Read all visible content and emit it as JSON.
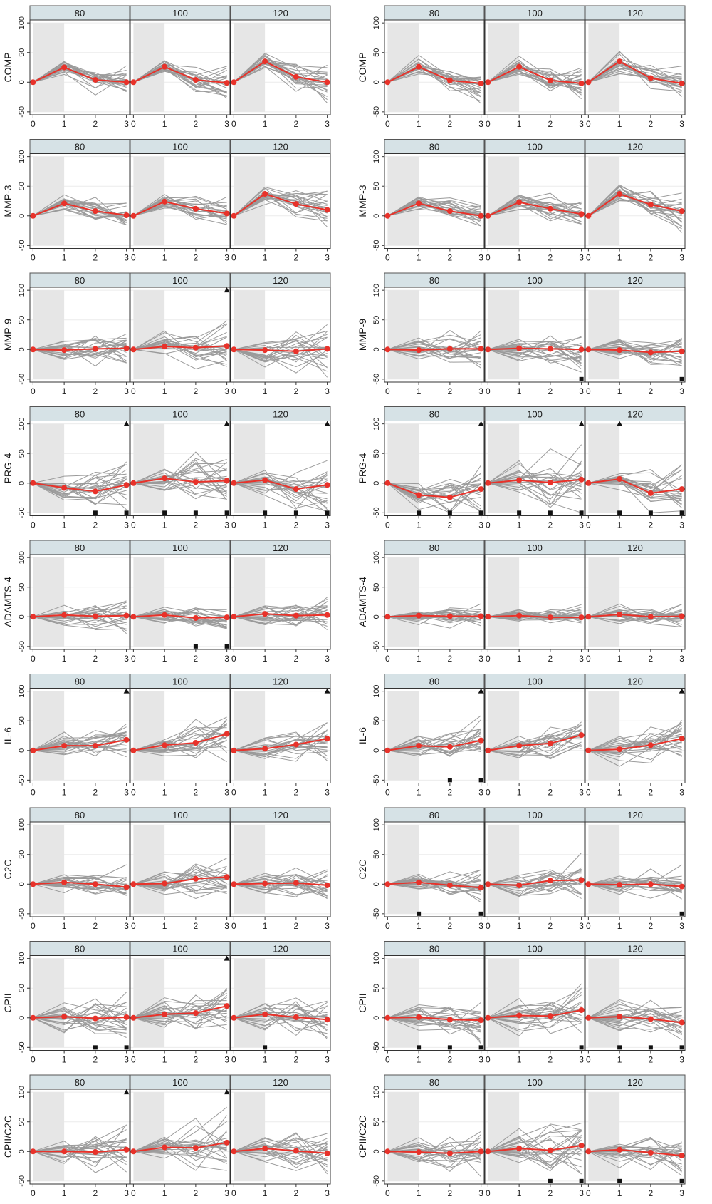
{
  "chart_data": {
    "type": "line",
    "description_axis": {
      "x_ticks": [
        "0",
        "1",
        "2",
        "3"
      ],
      "y_ticks": [
        "-50",
        "0",
        "50",
        "100"
      ],
      "xlim": [
        -0.1,
        3.1
      ],
      "ylim": [
        -55,
        105
      ],
      "shaded_x": [
        0,
        1
      ]
    },
    "panel_labels": [
      "80",
      "100",
      "120"
    ],
    "colors": {
      "strip_bg": "#d6e2e6",
      "shade": "#e6e6e6",
      "grey_line": "#9a9a9a",
      "mean_line": "#e8322a",
      "marker": "#111111"
    },
    "rows": [
      {
        "label": "COMP",
        "groups": [
          {
            "panels": [
              {
                "label": "80",
                "mean": [
                  0,
                  25,
                  4,
                  0
                ],
                "spread": 14,
                "tri": [],
                "sq": []
              },
              {
                "label": "100",
                "mean": [
                  0,
                  26,
                  4,
                  -1
                ],
                "spread": 14,
                "tri": [],
                "sq": []
              },
              {
                "label": "120",
                "mean": [
                  0,
                  35,
                  9,
                  0
                ],
                "spread": 16,
                "tri": [],
                "sq": []
              }
            ]
          },
          {
            "panels": [
              {
                "label": "80",
                "mean": [
                  0,
                  26,
                  3,
                  -2
                ],
                "spread": 15,
                "tri": [],
                "sq": []
              },
              {
                "label": "100",
                "mean": [
                  0,
                  26,
                  3,
                  -2
                ],
                "spread": 14,
                "tri": [],
                "sq": []
              },
              {
                "label": "120",
                "mean": [
                  0,
                  35,
                  7,
                  -2
                ],
                "spread": 16,
                "tri": [],
                "sq": []
              }
            ]
          }
        ]
      },
      {
        "label": "MMP-3",
        "groups": [
          {
            "panels": [
              {
                "label": "80",
                "mean": [
                  0,
                  21,
                  8,
                  1
                ],
                "spread": 13,
                "tri": [],
                "sq": []
              },
              {
                "label": "100",
                "mean": [
                  0,
                  24,
                  12,
                  4
                ],
                "spread": 14,
                "tri": [],
                "sq": []
              },
              {
                "label": "120",
                "mean": [
                  0,
                  37,
                  20,
                  10
                ],
                "spread": 17,
                "tri": [],
                "sq": []
              }
            ]
          },
          {
            "panels": [
              {
                "label": "80",
                "mean": [
                  0,
                  21,
                  8,
                  0
                ],
                "spread": 13,
                "tri": [],
                "sq": []
              },
              {
                "label": "100",
                "mean": [
                  0,
                  23,
                  12,
                  3
                ],
                "spread": 15,
                "tri": [],
                "sq": []
              },
              {
                "label": "120",
                "mean": [
                  0,
                  37,
                  19,
                  8
                ],
                "spread": 18,
                "tri": [],
                "sq": []
              }
            ]
          }
        ]
      },
      {
        "label": "MMP-9",
        "groups": [
          {
            "panels": [
              {
                "label": "80",
                "mean": [
                  0,
                  -1,
                  1,
                  2
                ],
                "spread": 20,
                "tri": [],
                "sq": []
              },
              {
                "label": "100",
                "mean": [
                  0,
                  5,
                  3,
                  6
                ],
                "spread": 22,
                "tri": [
                  3
                ],
                "sq": []
              },
              {
                "label": "120",
                "mean": [
                  0,
                  -1,
                  -3,
                  1
                ],
                "spread": 22,
                "tri": [],
                "sq": []
              }
            ]
          },
          {
            "panels": [
              {
                "label": "80",
                "mean": [
                  0,
                  -1,
                  1,
                  1
                ],
                "spread": 20,
                "tri": [],
                "sq": []
              },
              {
                "label": "100",
                "mean": [
                  0,
                  2,
                  1,
                  0
                ],
                "spread": 22,
                "tri": [],
                "sq": [
                  3
                ]
              },
              {
                "label": "120",
                "mean": [
                  0,
                  -1,
                  -5,
                  -3
                ],
                "spread": 21,
                "tri": [],
                "sq": [
                  3
                ]
              }
            ]
          }
        ]
      },
      {
        "label": "PRG-4",
        "groups": [
          {
            "panels": [
              {
                "label": "80",
                "mean": [
                  0,
                  -8,
                  -14,
                  -3
                ],
                "spread": 24,
                "tri": [
                  3
                ],
                "sq": [
                  2,
                  3
                ]
              },
              {
                "label": "100",
                "mean": [
                  0,
                  8,
                  2,
                  4
                ],
                "spread": 28,
                "tri": [
                  3
                ],
                "sq": [
                  1,
                  2,
                  3
                ]
              },
              {
                "label": "120",
                "mean": [
                  0,
                  5,
                  -10,
                  -3
                ],
                "spread": 28,
                "tri": [
                  3
                ],
                "sq": [
                  1,
                  2,
                  3
                ]
              }
            ]
          },
          {
            "panels": [
              {
                "label": "80",
                "mean": [
                  0,
                  -20,
                  -24,
                  -10
                ],
                "spread": 24,
                "tri": [
                  3
                ],
                "sq": [
                  1,
                  2,
                  3
                ]
              },
              {
                "label": "100",
                "mean": [
                  0,
                  5,
                  1,
                  6
                ],
                "spread": 28,
                "tri": [
                  3
                ],
                "sq": [
                  1,
                  2,
                  3
                ]
              },
              {
                "label": "120",
                "mean": [
                  0,
                  7,
                  -17,
                  -10
                ],
                "spread": 28,
                "tri": [
                  1
                ],
                "sq": [
                  1,
                  2,
                  3
                ]
              }
            ]
          }
        ]
      },
      {
        "label": "ADAMTS-4",
        "groups": [
          {
            "panels": [
              {
                "label": "80",
                "mean": [
                  0,
                  3,
                  1,
                  2
                ],
                "spread": 16,
                "tri": [],
                "sq": []
              },
              {
                "label": "100",
                "mean": [
                  0,
                  3,
                  -2,
                  -1
                ],
                "spread": 12,
                "tri": [],
                "sq": [
                  2,
                  3
                ]
              },
              {
                "label": "120",
                "mean": [
                  0,
                  5,
                  2,
                  3
                ],
                "spread": 18,
                "tri": [],
                "sq": []
              }
            ]
          },
          {
            "panels": [
              {
                "label": "80",
                "mean": [
                  0,
                  2,
                  1,
                  1
                ],
                "spread": 12,
                "tri": [],
                "sq": []
              },
              {
                "label": "100",
                "mean": [
                  0,
                  2,
                  -1,
                  -1
                ],
                "spread": 10,
                "tri": [],
                "sq": []
              },
              {
                "label": "120",
                "mean": [
                  0,
                  4,
                  0,
                  1
                ],
                "spread": 12,
                "tri": [],
                "sq": []
              }
            ]
          }
        ]
      },
      {
        "label": "IL-6",
        "groups": [
          {
            "panels": [
              {
                "label": "80",
                "mean": [
                  0,
                  8,
                  8,
                  18
                ],
                "spread": 20,
                "tri": [
                  3
                ],
                "sq": []
              },
              {
                "label": "100",
                "mean": [
                  0,
                  9,
                  13,
                  28
                ],
                "spread": 20,
                "tri": [],
                "sq": []
              },
              {
                "label": "120",
                "mean": [
                  0,
                  3,
                  10,
                  20
                ],
                "spread": 20,
                "tri": [
                  3
                ],
                "sq": []
              }
            ]
          },
          {
            "panels": [
              {
                "label": "80",
                "mean": [
                  0,
                  8,
                  6,
                  17
                ],
                "spread": 22,
                "tri": [
                  3
                ],
                "sq": [
                  2,
                  3
                ]
              },
              {
                "label": "100",
                "mean": [
                  0,
                  8,
                  12,
                  26
                ],
                "spread": 20,
                "tri": [],
                "sq": []
              },
              {
                "label": "120",
                "mean": [
                  0,
                  2,
                  9,
                  20
                ],
                "spread": 22,
                "tri": [
                  3
                ],
                "sq": []
              }
            ]
          }
        ]
      },
      {
        "label": "C2C",
        "groups": [
          {
            "panels": [
              {
                "label": "80",
                "mean": [
                  0,
                  3,
                  0,
                  -5
                ],
                "spread": 16,
                "tri": [],
                "sq": []
              },
              {
                "label": "100",
                "mean": [
                  0,
                  1,
                  9,
                  12
                ],
                "spread": 22,
                "tri": [],
                "sq": []
              },
              {
                "label": "120",
                "mean": [
                  0,
                  1,
                  2,
                  -2
                ],
                "spread": 18,
                "tri": [],
                "sq": []
              }
            ]
          },
          {
            "panels": [
              {
                "label": "80",
                "mean": [
                  0,
                  3,
                  -2,
                  -6
                ],
                "spread": 16,
                "tri": [],
                "sq": [
                  1,
                  3
                ]
              },
              {
                "label": "100",
                "mean": [
                  0,
                  -2,
                  6,
                  7
                ],
                "spread": 20,
                "tri": [],
                "sq": []
              },
              {
                "label": "120",
                "mean": [
                  0,
                  -1,
                  0,
                  -4
                ],
                "spread": 18,
                "tri": [],
                "sq": [
                  3
                ]
              }
            ]
          }
        ]
      },
      {
        "label": "CPII",
        "groups": [
          {
            "panels": [
              {
                "label": "80",
                "mean": [
                  0,
                  2,
                  -1,
                  1
                ],
                "spread": 24,
                "tri": [],
                "sq": [
                  2,
                  3
                ]
              },
              {
                "label": "100",
                "mean": [
                  0,
                  6,
                  8,
                  20
                ],
                "spread": 24,
                "tri": [
                  3
                ],
                "sq": []
              },
              {
                "label": "120",
                "mean": [
                  0,
                  6,
                  1,
                  -3
                ],
                "spread": 24,
                "tri": [],
                "sq": [
                  1
                ]
              }
            ]
          },
          {
            "panels": [
              {
                "label": "80",
                "mean": [
                  0,
                  1,
                  -3,
                  -4
                ],
                "spread": 22,
                "tri": [],
                "sq": [
                  1,
                  2,
                  3
                ]
              },
              {
                "label": "100",
                "mean": [
                  0,
                  4,
                  3,
                  13
                ],
                "spread": 22,
                "tri": [],
                "sq": [
                  3
                ]
              },
              {
                "label": "120",
                "mean": [
                  0,
                  2,
                  -2,
                  -8
                ],
                "spread": 22,
                "tri": [],
                "sq": [
                  1,
                  2,
                  3
                ]
              }
            ]
          }
        ]
      },
      {
        "label": "CPII/C2C",
        "groups": [
          {
            "panels": [
              {
                "label": "80",
                "mean": [
                  0,
                  0,
                  -1,
                  3
                ],
                "spread": 22,
                "tri": [
                  3
                ],
                "sq": []
              },
              {
                "label": "100",
                "mean": [
                  0,
                  7,
                  6,
                  15
                ],
                "spread": 24,
                "tri": [
                  3
                ],
                "sq": []
              },
              {
                "label": "120",
                "mean": [
                  0,
                  5,
                  1,
                  -3
                ],
                "spread": 22,
                "tri": [],
                "sq": []
              }
            ]
          },
          {
            "panels": [
              {
                "label": "80",
                "mean": [
                  0,
                  -1,
                  -3,
                  0
                ],
                "spread": 22,
                "tri": [],
                "sq": []
              },
              {
                "label": "100",
                "mean": [
                  0,
                  5,
                  2,
                  10
                ],
                "spread": 24,
                "tri": [],
                "sq": [
                  2,
                  3
                ]
              },
              {
                "label": "120",
                "mean": [
                  0,
                  3,
                  -2,
                  -7
                ],
                "spread": 22,
                "tri": [],
                "sq": [
                  1,
                  3
                ]
              }
            ]
          }
        ]
      }
    ]
  }
}
